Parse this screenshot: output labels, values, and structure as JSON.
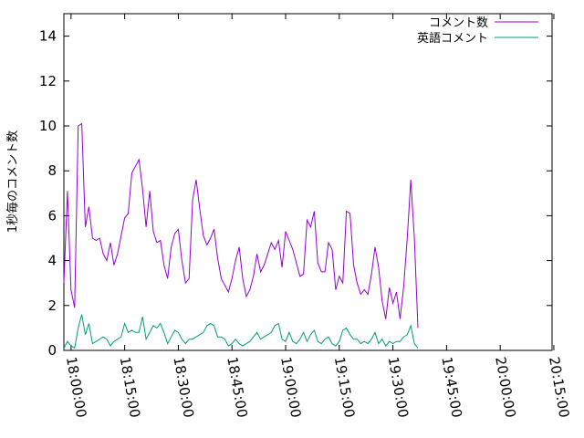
{
  "chart_data": {
    "type": "line",
    "title": "",
    "xlabel": "",
    "ylabel": "1秒毎のコメント数",
    "xlim": [
      "18:00:00",
      "20:15:00"
    ],
    "ylim": [
      0,
      15
    ],
    "x_ticks": [
      "18:00:00",
      "18:15:00",
      "18:30:00",
      "18:45:00",
      "19:00:00",
      "19:15:00",
      "19:30:00",
      "19:45:00",
      "20:00:00",
      "20:15:00"
    ],
    "y_ticks": [
      "0",
      "2",
      "4",
      "6",
      "8",
      "10",
      "12",
      "14"
    ],
    "grid": false,
    "legend_position": "top-right",
    "x_start": "17:58:00",
    "x_step_minutes": 1,
    "series": [
      {
        "name": "コメント数",
        "color": "#9400d3",
        "values": [
          3.0,
          7.1,
          2.7,
          1.9,
          10.0,
          10.1,
          5.5,
          6.4,
          5.0,
          4.9,
          5.0,
          4.3,
          4.0,
          4.8,
          3.8,
          4.3,
          5.1,
          5.9,
          6.1,
          7.9,
          8.2,
          8.5,
          7.2,
          5.5,
          7.1,
          5.3,
          4.8,
          4.9,
          3.8,
          3.2,
          4.6,
          5.2,
          5.4,
          4.0,
          3.0,
          3.2,
          6.7,
          7.6,
          6.3,
          5.1,
          4.7,
          5.0,
          5.4,
          4.1,
          3.2,
          2.9,
          2.6,
          3.2,
          4.0,
          4.6,
          3.2,
          2.4,
          2.7,
          3.3,
          4.3,
          3.5,
          3.8,
          4.3,
          4.8,
          4.5,
          4.9,
          3.7,
          5.3,
          4.9,
          4.5,
          3.9,
          3.3,
          3.4,
          5.8,
          5.5,
          6.2,
          3.9,
          3.5,
          3.5,
          4.8,
          4.5,
          2.7,
          3.3,
          3.0,
          6.2,
          6.1,
          3.8,
          3.0,
          2.5,
          2.7,
          2.5,
          3.4,
          4.6,
          3.7,
          2.2,
          1.4,
          2.8,
          2.1,
          2.6,
          1.4,
          2.8,
          5.0,
          7.6,
          5.0,
          1.0
        ]
      },
      {
        "name": "英語コメント",
        "color": "#009e73",
        "values": [
          0.1,
          0.4,
          0.2,
          0.1,
          1.0,
          1.6,
          0.7,
          1.2,
          0.3,
          0.4,
          0.5,
          0.6,
          0.5,
          0.2,
          0.4,
          0.5,
          0.6,
          1.2,
          0.8,
          0.9,
          0.8,
          0.8,
          1.5,
          0.5,
          0.8,
          1.1,
          1.0,
          1.2,
          0.8,
          0.3,
          0.6,
          0.9,
          0.8,
          0.5,
          0.3,
          0.5,
          0.5,
          0.6,
          0.7,
          0.8,
          1.1,
          1.2,
          1.1,
          0.6,
          0.6,
          0.5,
          0.2,
          0.3,
          0.5,
          0.3,
          0.2,
          0.3,
          0.4,
          0.6,
          0.8,
          0.5,
          0.6,
          0.7,
          0.8,
          1.1,
          1.2,
          0.5,
          0.4,
          0.8,
          0.4,
          0.3,
          0.5,
          0.8,
          0.4,
          0.7,
          0.9,
          0.4,
          0.3,
          0.5,
          0.6,
          0.3,
          0.2,
          0.4,
          0.9,
          1.0,
          0.7,
          0.5,
          0.5,
          0.3,
          0.4,
          0.3,
          0.5,
          0.8,
          0.3,
          0.5,
          0.2,
          0.4,
          0.3,
          0.4,
          0.4,
          0.6,
          0.7,
          1.1,
          0.3,
          0.1
        ]
      }
    ]
  }
}
